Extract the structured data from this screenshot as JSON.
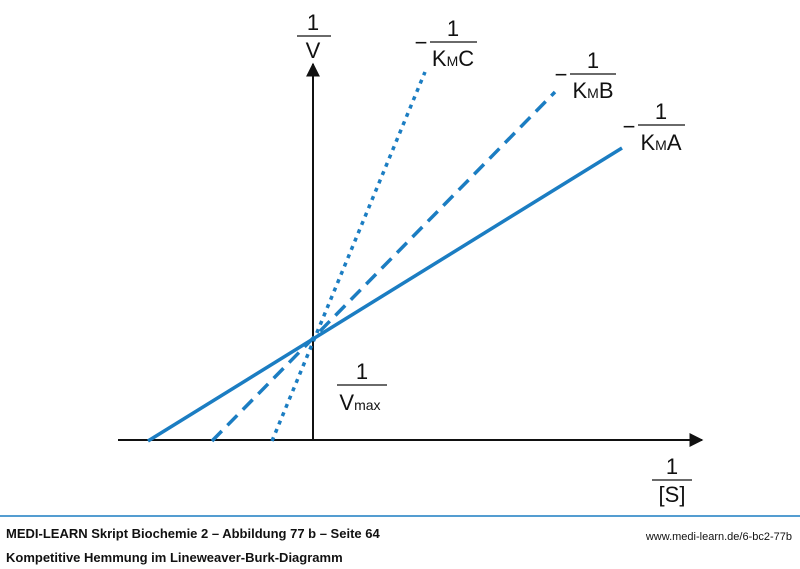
{
  "y_axis": {
    "numerator": "1",
    "denominator": "V"
  },
  "x_axis": {
    "numerator": "1",
    "denominator": "[S]"
  },
  "intercept": {
    "numerator": "1",
    "denominator": "V",
    "subscript": "max"
  },
  "lines": [
    {
      "sign": "−",
      "numerator": "1",
      "denominator": "K",
      "subscript": "M",
      "suffix": "C"
    },
    {
      "sign": "−",
      "numerator": "1",
      "denominator": "K",
      "subscript": "M",
      "suffix": "B"
    },
    {
      "sign": "−",
      "numerator": "1",
      "denominator": "K",
      "subscript": "M",
      "suffix": "A"
    }
  ],
  "footer": {
    "title": "MEDI-LEARN Skript Biochemie 2 – Abbildung 77 b – Seite 64",
    "url": "www.medi-learn.de/6-bc2-77b",
    "subtitle": "Kompetitive Hemmung im Lineweaver-Burk-Diagramm"
  }
}
